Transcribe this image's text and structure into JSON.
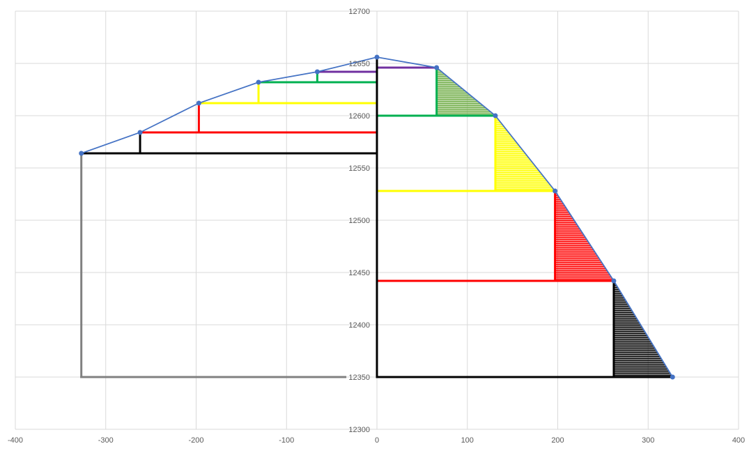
{
  "chart_data": {
    "type": "scatter",
    "title": "",
    "xlabel": "",
    "ylabel": "",
    "xlim": [
      -400,
      400
    ],
    "ylim": [
      12300,
      12700
    ],
    "x_ticks": [
      -400,
      -300,
      -200,
      -100,
      0,
      100,
      200,
      300,
      400
    ],
    "y_ticks": [
      12300,
      12350,
      12400,
      12450,
      12500,
      12550,
      12600,
      12650,
      12700
    ],
    "x_tick_labels": [
      "-400",
      "-300",
      "-200",
      "-100",
      "0",
      "100",
      "200",
      "300",
      "400"
    ],
    "y_tick_labels": [
      "12300",
      "12350",
      "12400",
      "12450",
      "12500",
      "12550",
      "12600",
      "12650",
      "12700"
    ],
    "grid": true,
    "profile_line": {
      "color": "#4472C4",
      "points": [
        [
          -327,
          12564
        ],
        [
          -262,
          12584
        ],
        [
          -197,
          12612
        ],
        [
          -131,
          12632
        ],
        [
          -66,
          12642
        ],
        [
          0,
          12656
        ],
        [
          66,
          12646
        ],
        [
          131,
          12600
        ],
        [
          197,
          12528
        ],
        [
          262,
          12442
        ],
        [
          327,
          12350
        ]
      ]
    },
    "shaded_triangles": [
      {
        "color": "#70AD47",
        "points": [
          [
            66,
            12646
          ],
          [
            131,
            12600
          ],
          [
            66,
            12600
          ]
        ]
      },
      {
        "color": "#FFFF00",
        "points": [
          [
            131,
            12600
          ],
          [
            197,
            12528
          ],
          [
            131,
            12528
          ]
        ]
      },
      {
        "color": "#FF0000",
        "points": [
          [
            197,
            12528
          ],
          [
            262,
            12442
          ],
          [
            197,
            12442
          ]
        ]
      },
      {
        "color": "#000000",
        "points": [
          [
            262,
            12442
          ],
          [
            327,
            12350
          ],
          [
            262,
            12350
          ]
        ]
      }
    ],
    "segments": [
      {
        "color": "#7030A0",
        "x1": 0,
        "y1": 12646,
        "x2": 66,
        "y2": 12646
      },
      {
        "color": "#7030A0",
        "x1": -66,
        "y1": 12642,
        "x2": 0,
        "y2": 12642
      },
      {
        "color": "#00B050",
        "x1": 66,
        "y1": 12646,
        "x2": 66,
        "y2": 12600
      },
      {
        "color": "#00B050",
        "x1": 0,
        "y1": 12600,
        "x2": 131,
        "y2": 12600
      },
      {
        "color": "#00B050",
        "x1": -131,
        "y1": 12632,
        "x2": 0,
        "y2": 12632
      },
      {
        "color": "#00B050",
        "x1": -66,
        "y1": 12642,
        "x2": -66,
        "y2": 12632
      },
      {
        "color": "#FFFF00",
        "x1": 131,
        "y1": 12600,
        "x2": 131,
        "y2": 12528
      },
      {
        "color": "#FFFF00",
        "x1": 0,
        "y1": 12528,
        "x2": 197,
        "y2": 12528
      },
      {
        "color": "#FFFF00",
        "x1": -197,
        "y1": 12612,
        "x2": 0,
        "y2": 12612
      },
      {
        "color": "#FFFF00",
        "x1": -131,
        "y1": 12632,
        "x2": -131,
        "y2": 12612
      },
      {
        "color": "#FF0000",
        "x1": 197,
        "y1": 12528,
        "x2": 197,
        "y2": 12442
      },
      {
        "color": "#FF0000",
        "x1": 0,
        "y1": 12442,
        "x2": 262,
        "y2": 12442
      },
      {
        "color": "#FF0000",
        "x1": -262,
        "y1": 12584,
        "x2": 0,
        "y2": 12584
      },
      {
        "color": "#FF0000",
        "x1": -197,
        "y1": 12612,
        "x2": -197,
        "y2": 12584
      },
      {
        "color": "#000000",
        "x1": 262,
        "y1": 12442,
        "x2": 262,
        "y2": 12350
      },
      {
        "color": "#000000",
        "x1": 0,
        "y1": 12350,
        "x2": 327,
        "y2": 12350
      },
      {
        "color": "#000000",
        "x1": 0,
        "y1": 12350,
        "x2": 0,
        "y2": 12656
      },
      {
        "color": "#000000",
        "x1": -327,
        "y1": 12564,
        "x2": 0,
        "y2": 12564
      },
      {
        "color": "#000000",
        "x1": -262,
        "y1": 12584,
        "x2": -262,
        "y2": 12564
      },
      {
        "color": "#808080",
        "x1": -327,
        "y1": 12564,
        "x2": -327,
        "y2": 12350
      },
      {
        "color": "#808080",
        "x1": -327,
        "y1": 12350,
        "x2": -35,
        "y2": 12350
      }
    ]
  }
}
